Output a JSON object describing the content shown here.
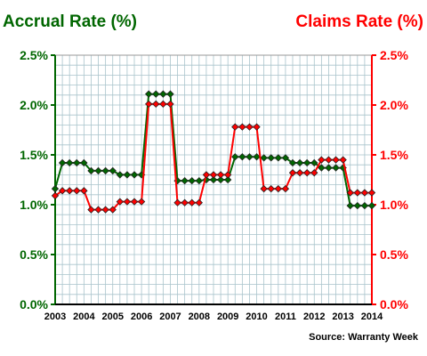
{
  "chart_data": {
    "type": "line",
    "left_axis_title": "Accrual Rate (%)",
    "right_axis_title": "Claims Rate (%)",
    "source": "Source: Warranty Week",
    "colors": {
      "left": "#006600",
      "right": "#ff0000",
      "grid": "#a9c4cc"
    },
    "y_range": [
      0,
      2.5
    ],
    "x_range": [
      2003,
      2014
    ],
    "y_tick_labels": [
      "0.0%",
      "0.5%",
      "1.0%",
      "1.5%",
      "2.0%",
      "2.5%"
    ],
    "x_tick_labels": [
      "2003",
      "2004",
      "2005",
      "2006",
      "2007",
      "2008",
      "2009",
      "2010",
      "2011",
      "2012",
      "2013",
      "2014"
    ],
    "grid": true,
    "x": [
      2003.0,
      2003.25,
      2003.5,
      2003.75,
      2004.0,
      2004.25,
      2004.5,
      2004.75,
      2005.0,
      2005.25,
      2005.5,
      2005.75,
      2006.0,
      2006.25,
      2006.5,
      2006.75,
      2007.0,
      2007.25,
      2007.5,
      2007.75,
      2008.0,
      2008.25,
      2008.5,
      2008.75,
      2009.0,
      2009.25,
      2009.5,
      2009.75,
      2010.0,
      2010.25,
      2010.5,
      2010.75,
      2011.0,
      2011.25,
      2011.5,
      2011.75,
      2012.0,
      2012.25,
      2012.5,
      2012.75,
      2013.0,
      2013.25,
      2013.5,
      2013.75,
      2014.0
    ],
    "series": [
      {
        "axis": "left",
        "color": "#006600",
        "values": [
          1.16,
          1.42,
          1.42,
          1.42,
          1.42,
          1.34,
          1.34,
          1.34,
          1.34,
          1.3,
          1.3,
          1.3,
          1.3,
          2.11,
          2.11,
          2.11,
          2.11,
          1.24,
          1.24,
          1.24,
          1.24,
          1.25,
          1.25,
          1.25,
          1.25,
          1.48,
          1.48,
          1.48,
          1.48,
          1.47,
          1.47,
          1.47,
          1.47,
          1.42,
          1.42,
          1.42,
          1.42,
          1.37,
          1.37,
          1.37,
          1.37,
          0.99,
          0.99,
          0.99,
          0.99
        ]
      },
      {
        "axis": "right",
        "color": "#ff0000",
        "values": [
          1.09,
          1.14,
          1.14,
          1.14,
          1.14,
          0.95,
          0.95,
          0.95,
          0.95,
          1.03,
          1.03,
          1.03,
          1.03,
          2.01,
          2.01,
          2.01,
          2.01,
          1.02,
          1.02,
          1.02,
          1.02,
          1.3,
          1.3,
          1.3,
          1.3,
          1.78,
          1.78,
          1.78,
          1.78,
          1.16,
          1.16,
          1.16,
          1.16,
          1.32,
          1.32,
          1.32,
          1.32,
          1.45,
          1.45,
          1.45,
          1.45,
          1.12,
          1.12,
          1.12,
          1.12
        ]
      }
    ]
  }
}
